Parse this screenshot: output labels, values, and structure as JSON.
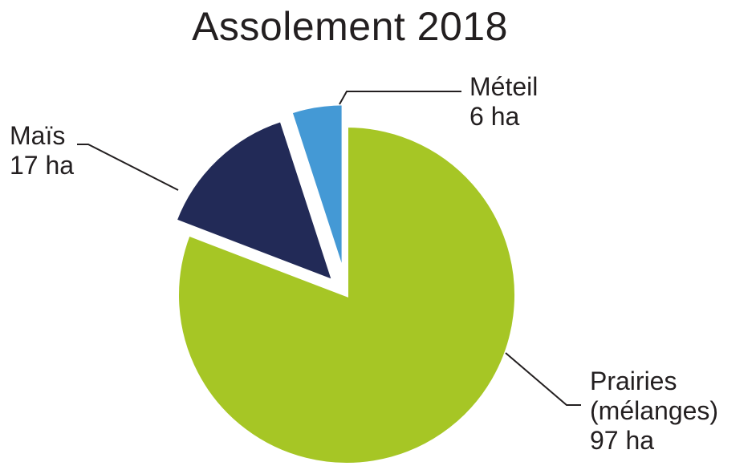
{
  "chart_data": {
    "type": "pie",
    "title": "Assolement 2018",
    "unit": "ha",
    "slices": [
      {
        "label_lines": [
          "Prairies",
          "(mélanges)",
          "97 ha"
        ],
        "value": 97,
        "color": "#a6c625"
      },
      {
        "label_lines": [
          "Maïs",
          "17 ha"
        ],
        "value": 17,
        "color": "#222a57"
      },
      {
        "label_lines": [
          "Méteil",
          "6 ha"
        ],
        "value": 6,
        "color": "#4499d5"
      }
    ],
    "exploded": [
      "Maïs",
      "Méteil"
    ],
    "legend": "none"
  }
}
